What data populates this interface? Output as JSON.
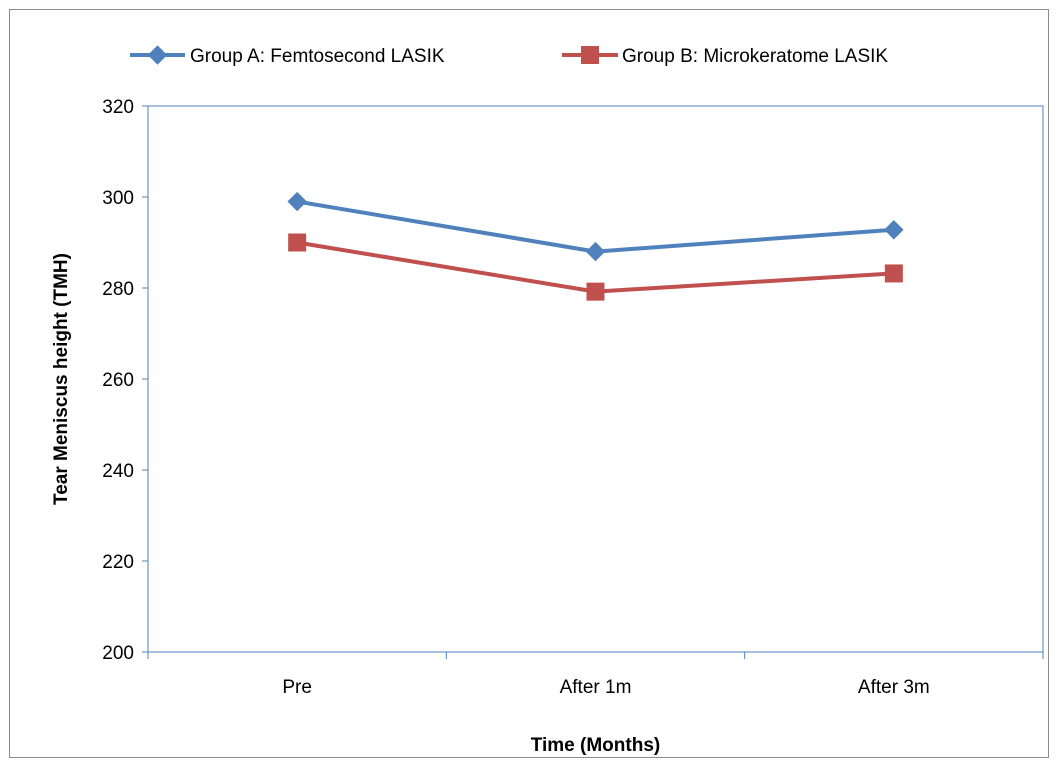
{
  "chart_data": {
    "type": "line",
    "categories": [
      "Pre",
      "After 1m",
      "After 3m"
    ],
    "series": [
      {
        "name": "Group A: Femtosecond LASIK",
        "values": [
          299,
          288,
          292.8
        ],
        "color": "#4f81bd",
        "marker": "diamond"
      },
      {
        "name": "Group B: Microkeratome LASIK",
        "values": [
          290,
          279.2,
          283.2
        ],
        "color": "#c0504d",
        "marker": "square"
      }
    ],
    "xlabel": "Time (Months)",
    "ylabel": "Tear Meniscus height (TMH)",
    "ylim": [
      200,
      320
    ],
    "yticks": [
      200,
      220,
      240,
      260,
      280,
      300,
      320
    ],
    "grid": false,
    "legend": "top"
  }
}
